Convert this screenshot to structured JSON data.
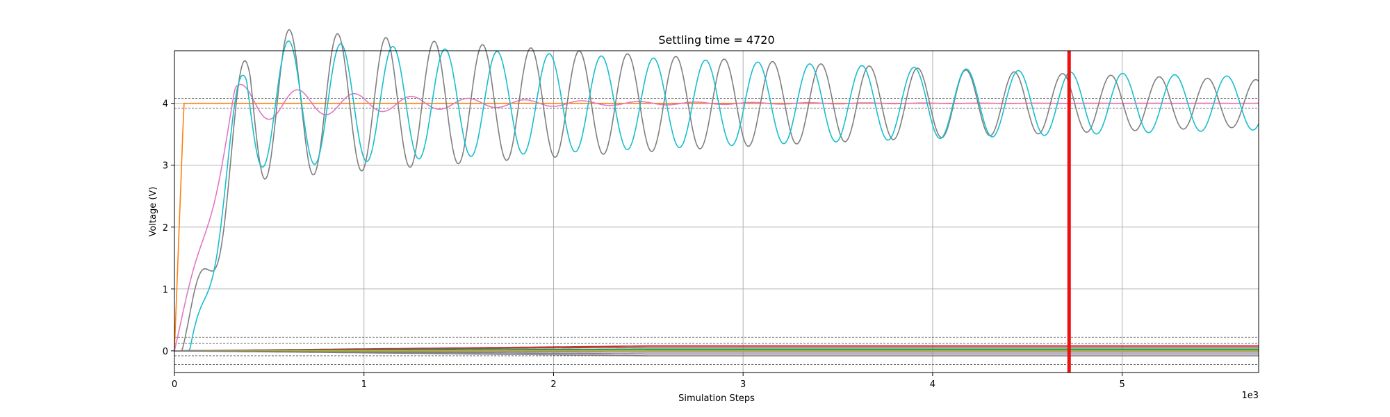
{
  "chart_data": {
    "type": "line",
    "title": "Settling time = 4720",
    "xlabel": "Simulation Steps",
    "ylabel": "Voltage (V)",
    "x_scale_label": "1e3",
    "xlim": [
      0,
      5.72
    ],
    "ylim": [
      -0.35,
      4.85
    ],
    "x_ticks": [
      0,
      1,
      2,
      3,
      4,
      5
    ],
    "x_tick_labels": [
      "0",
      "1",
      "2",
      "3",
      "4",
      "5"
    ],
    "y_ticks": [
      0,
      1,
      2,
      3,
      4
    ],
    "y_tick_labels": [
      "0",
      "1",
      "2",
      "3",
      "4"
    ],
    "grid": true,
    "settling_time": 4720,
    "settling_marker_color": "#ee1111",
    "reference_lines": [
      4.08,
      3.92,
      0.22,
      0.12,
      -0.08,
      -0.22
    ],
    "series": [
      {
        "color": "#ff7f0e",
        "kind": "step",
        "t0": 0.05,
        "start": 0,
        "final": 4.0,
        "amp": 0,
        "tau": 1,
        "period": 1
      },
      {
        "color": "#e377c2",
        "kind": "osc",
        "t0": 0.0,
        "start": 0,
        "final": 4.0,
        "amp": 0.45,
        "tau": 0.9,
        "period": 0.3,
        "phase": 0.5,
        "ramp": 0.32
      },
      {
        "color": "#7f7f7f",
        "kind": "osc",
        "t0": 0.04,
        "start": 0,
        "final": 4.0,
        "amp": 1.35,
        "tau": 4.5,
        "period": 0.255,
        "phase": 0.2,
        "ramp": 0.36
      },
      {
        "color": "#17becf",
        "kind": "osc",
        "t0": 0.08,
        "start": 0,
        "final": 4.0,
        "amp": 1.1,
        "tau": 6.0,
        "period": 0.275,
        "phase": 2.2,
        "ramp": 0.3
      },
      {
        "color": "#d62728",
        "kind": "flat",
        "start": 0,
        "final": 0.08
      },
      {
        "color": "#8c564b",
        "kind": "flat",
        "start": 0,
        "final": 0.06
      },
      {
        "color": "#2ca02c",
        "kind": "flat",
        "start": 0,
        "final": 0.03
      },
      {
        "color": "#1f77b4",
        "kind": "flat",
        "start": 0,
        "final": 0.01
      },
      {
        "color": "#9467bd",
        "kind": "flat",
        "start": 0,
        "final": -0.02
      },
      {
        "color": "#bcbd22",
        "kind": "flat",
        "start": 0,
        "final": 0.0
      },
      {
        "color": "#7f7f7f",
        "kind": "flat",
        "start": 0,
        "final": -0.05
      },
      {
        "color": "#7f7f7f",
        "kind": "flat",
        "start": 0,
        "final": -0.08
      }
    ]
  }
}
